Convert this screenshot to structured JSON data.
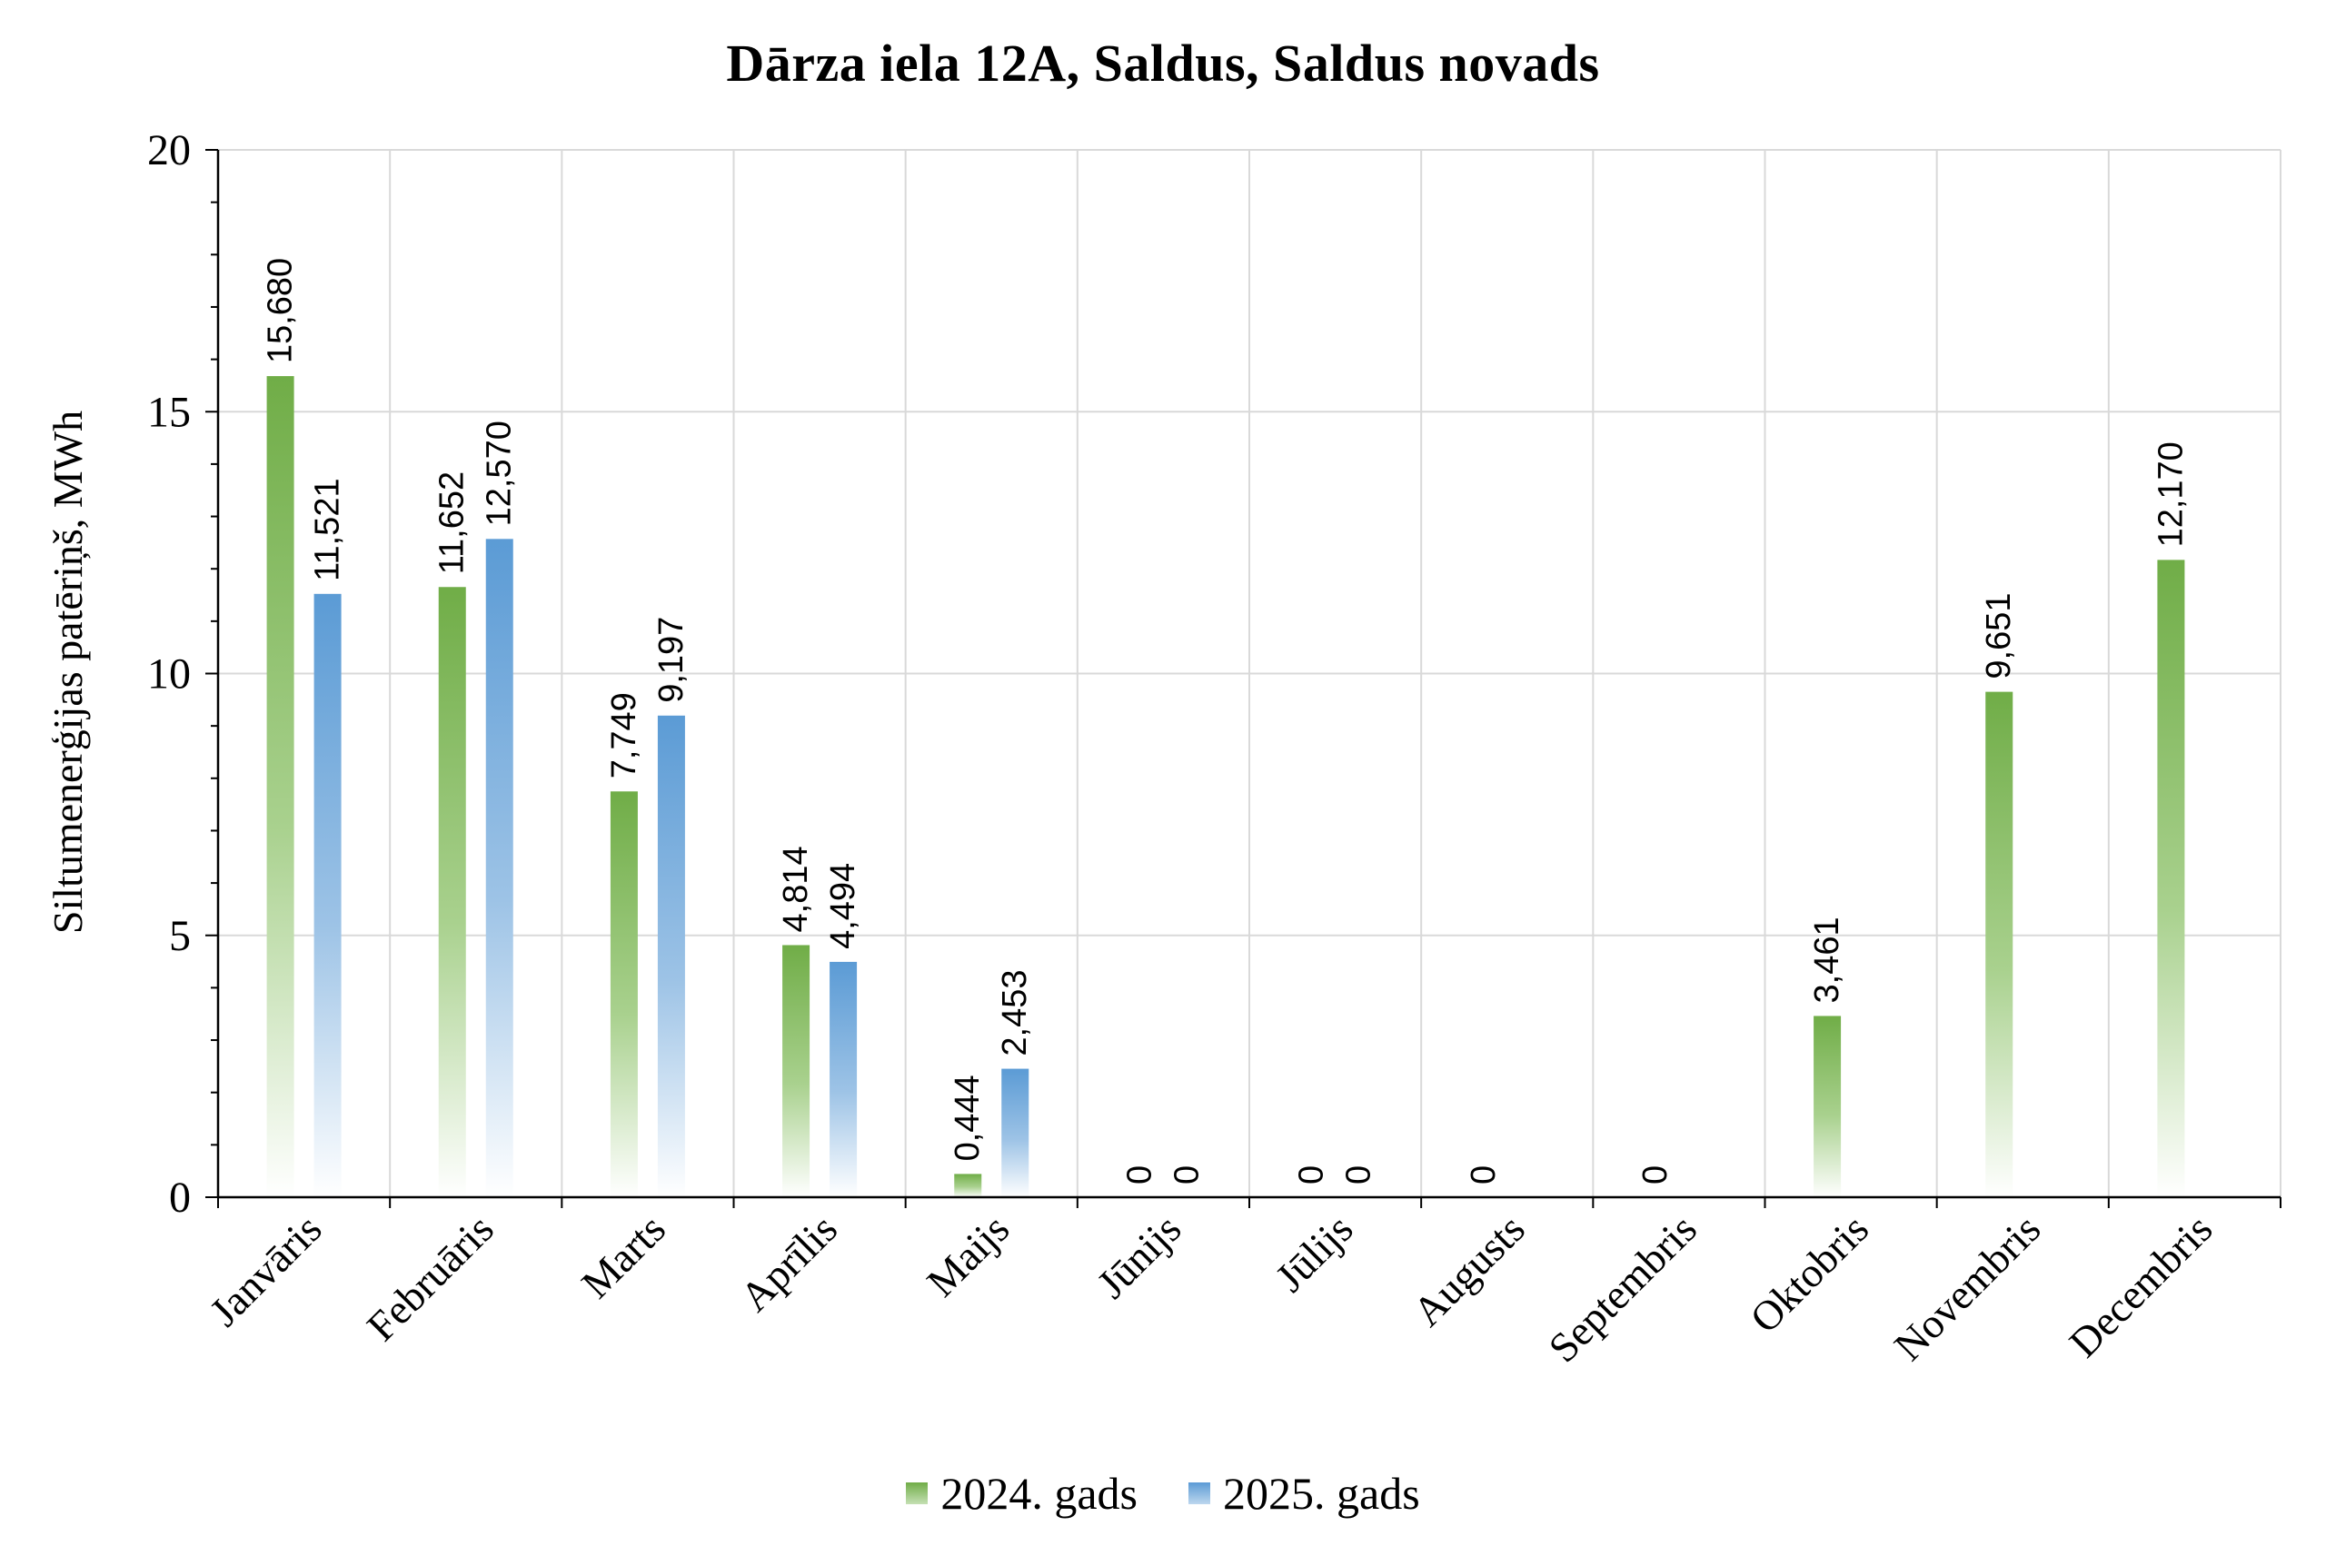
{
  "chart_data": {
    "type": "bar",
    "title": "Dārza iela 12A, Saldus, Saldus novads",
    "ylabel": "Siltumenerģijas patēriņš, MWh",
    "xlabel": "",
    "ylim": [
      0,
      20
    ],
    "yticks": [
      0,
      5,
      10,
      15,
      20
    ],
    "grid": true,
    "legend_position": "bottom",
    "categories": [
      "Janvāris",
      "Februāris",
      "Marts",
      "Aprīlis",
      "Maijs",
      "Jūnijs",
      "Jūlijs",
      "Augusts",
      "Septembris",
      "Oktobris",
      "Novembris",
      "Decembris"
    ],
    "series": [
      {
        "name": "2024. gads",
        "color": "#70ad47",
        "values": [
          15.68,
          11.652,
          7.749,
          4.814,
          0.444,
          0,
          0,
          0,
          0,
          3.461,
          9.651,
          12.17
        ],
        "labels": [
          "15,680",
          "11,652",
          "7,749",
          "4,814",
          "0,444",
          "0",
          "0",
          "0",
          "0",
          "3,461",
          "9,651",
          "12,170"
        ]
      },
      {
        "name": "2025. gads",
        "color": "#5b9bd5",
        "values": [
          11.521,
          12.57,
          9.197,
          4.494,
          2.453,
          0,
          0,
          null,
          null,
          null,
          null,
          null
        ],
        "labels": [
          "11,521",
          "12,570",
          "9,197",
          "4,494",
          "2,453",
          "0",
          "0",
          null,
          null,
          null,
          null,
          null
        ]
      }
    ]
  }
}
